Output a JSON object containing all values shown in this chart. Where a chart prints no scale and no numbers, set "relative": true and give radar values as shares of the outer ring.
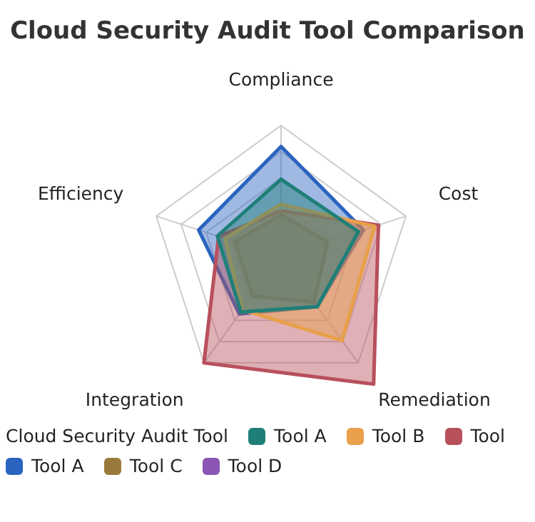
{
  "chart_data": {
    "type": "radar",
    "title": "Cloud Security Audit Tool Comparison",
    "legend_title": "Cloud Security Audit Tool",
    "categories": [
      "Compliance",
      "Cost",
      "Remediation",
      "Integration",
      "Efficiency"
    ],
    "relative": true,
    "grid": true,
    "legend": "bottom",
    "series": [
      {
        "name": "Tool A",
        "color": "#1f7f78",
        "values": [
          0.59,
          0.62,
          0.47,
          0.52,
          0.51
        ]
      },
      {
        "name": "Tool B",
        "color": "#e8a04a",
        "values": [
          0.4,
          0.75,
          0.79,
          0.5,
          0.45
        ]
      },
      {
        "name": "Tool",
        "color": "#b8505c",
        "values": [
          0.35,
          0.78,
          1.2,
          1.0,
          0.5
        ]
      },
      {
        "name": "Tool A",
        "color": "#2a64c0",
        "values": [
          0.84,
          0.66,
          0.47,
          0.54,
          0.66
        ]
      },
      {
        "name": "Tool C",
        "color": "#9a7a3a",
        "values": [
          0.32,
          0.37,
          0.43,
          0.37,
          0.37
        ]
      },
      {
        "name": "Tool D",
        "color": "#8a55b5",
        "values": [
          null,
          null,
          null,
          null,
          null
        ]
      }
    ]
  }
}
